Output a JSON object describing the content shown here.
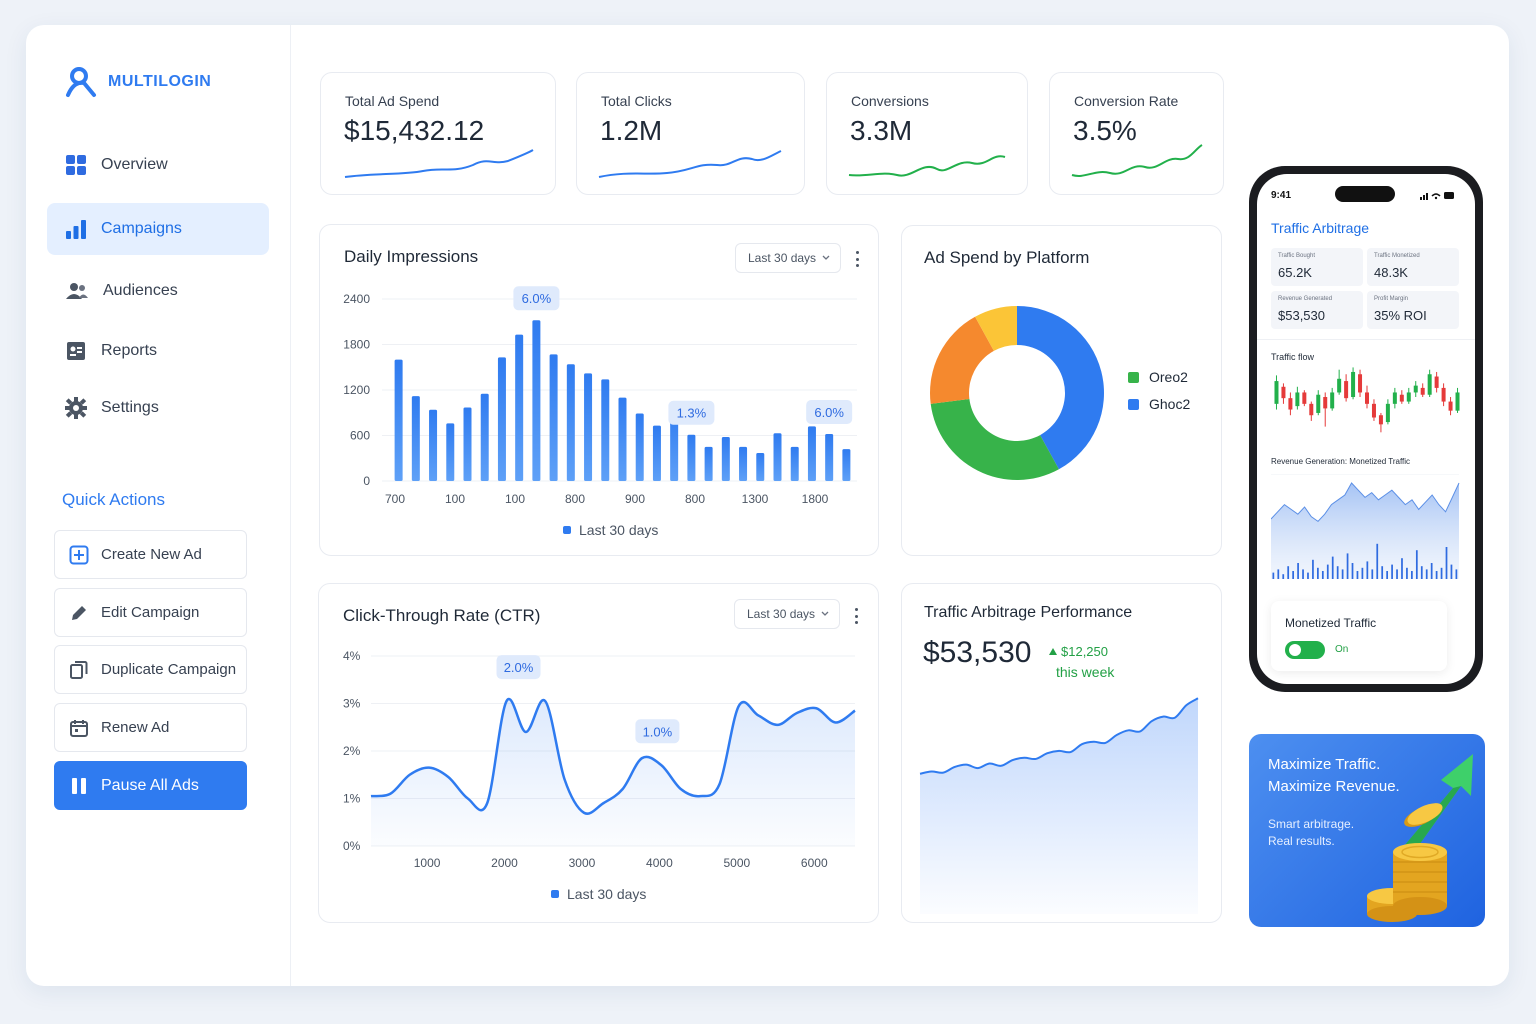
{
  "brand": {
    "name": "MULTILOGIN"
  },
  "nav": [
    {
      "label": "Overview",
      "icon": "grid-icon"
    },
    {
      "label": "Campaigns",
      "icon": "bar-chart-icon",
      "active": true
    },
    {
      "label": "Audiences",
      "icon": "users-icon"
    },
    {
      "label": "Reports",
      "icon": "report-icon"
    },
    {
      "label": "Settings",
      "icon": "gear-icon"
    }
  ],
  "quick_actions": {
    "title": "Quick Actions",
    "items": [
      {
        "label": "Create New Ad",
        "icon": "plus-square-icon"
      },
      {
        "label": "Edit Campaign",
        "icon": "pencil-icon"
      },
      {
        "label": "Duplicate Campaign",
        "icon": "copy-icon"
      },
      {
        "label": "Renew Ad",
        "icon": "calendar-icon"
      },
      {
        "label": "Pause All Ads",
        "icon": "pause-icon"
      }
    ]
  },
  "stats": [
    {
      "label": "Total Ad Spend",
      "value": "$15,432.12",
      "spark_color": "#2f7bf0"
    },
    {
      "label": "Total Clicks",
      "value": "1.2M",
      "spark_color": "#2f7bf0"
    },
    {
      "label": "Conversions",
      "value": "3.3M",
      "spark_color": "#22b04b"
    },
    {
      "label": "Conversion Rate",
      "value": "3.5%",
      "spark_color": "#22b04b"
    }
  ],
  "impressions": {
    "title": "Daily Impressions",
    "range": "Last 30 days",
    "legend": "Last 30 days",
    "chart_data": {
      "type": "bar",
      "y_ticks": [
        "2400",
        "1800",
        "1200",
        "600",
        "0"
      ],
      "x_ticks": [
        "700",
        "100",
        "100",
        "800",
        "900",
        "800",
        "1300",
        "1800"
      ],
      "ylim": [
        0,
        2400
      ],
      "values": [
        1600,
        1120,
        940,
        760,
        970,
        1150,
        1630,
        1930,
        2120,
        1670,
        1540,
        1420,
        1340,
        1100,
        890,
        730,
        940,
        610,
        450,
        580,
        450,
        370,
        630,
        450,
        720,
        620,
        420
      ],
      "annotations": [
        {
          "label": "6.0%",
          "index": 8
        },
        {
          "label": "1.3%",
          "index": 17
        },
        {
          "label": "6.0%",
          "index": 25
        }
      ]
    }
  },
  "ctr": {
    "title": "Click-Through Rate (CTR)",
    "range": "Last 30 days",
    "legend": "Last 30 days",
    "chart_data": {
      "type": "area",
      "y_ticks": [
        "4%",
        "3%",
        "2%",
        "1%",
        "0%"
      ],
      "x_ticks": [
        "1000",
        "2000",
        "3000",
        "4000",
        "5000",
        "6000"
      ],
      "ylim": [
        0,
        4
      ],
      "x": [
        250,
        500,
        750,
        1000,
        1250,
        1500,
        1750,
        2000,
        2250,
        2500,
        2750,
        3000,
        3250,
        3500,
        3750,
        4000,
        4250,
        4500,
        4750,
        5000,
        5250,
        5500,
        5750,
        6000,
        6250,
        6500
      ],
      "values": [
        1.05,
        1.1,
        1.5,
        1.65,
        1.45,
        1.0,
        0.9,
        3.05,
        2.4,
        3.05,
        1.4,
        0.7,
        0.9,
        1.2,
        1.85,
        1.7,
        1.2,
        1.05,
        1.3,
        2.95,
        2.75,
        2.55,
        2.8,
        2.9,
        2.6,
        2.85
      ],
      "annotations": [
        {
          "label": "2.0%",
          "index": 7
        },
        {
          "label": "1.0%",
          "index": 15
        }
      ]
    }
  },
  "platform": {
    "title": "Ad Spend by Platform",
    "chart_data": {
      "type": "pie",
      "slices": [
        {
          "name": "Ghoc2",
          "value": 42,
          "color": "#2f7bf0"
        },
        {
          "name": "Oreo2",
          "value": 31,
          "color": "#37b34a"
        },
        {
          "name": "",
          "value": 19,
          "color": "#f5892e"
        },
        {
          "name": "",
          "value": 8,
          "color": "#fbc537"
        }
      ],
      "legend": [
        {
          "name": "Oreo2",
          "color": "#37b34a"
        },
        {
          "name": "Ghoc2",
          "color": "#2f7bf0"
        }
      ]
    }
  },
  "arbitrage": {
    "title": "Traffic Arbitrage Performance",
    "value": "$53,530",
    "delta": "$12,250",
    "delta_sub": "this week",
    "chart_data": {
      "type": "area",
      "values": [
        1.6,
        1.7,
        1.65,
        1.9,
        2.0,
        1.85,
        2.05,
        1.95,
        2.2,
        2.3,
        2.25,
        2.5,
        2.6,
        2.55,
        2.9,
        3.0,
        2.95,
        3.3,
        3.5,
        3.45,
        3.9,
        4.1,
        4.05,
        4.6,
        4.9
      ]
    }
  },
  "phone": {
    "time": "9:41",
    "title": "Traffic Arbitrage",
    "tiles": [
      {
        "label": "Traffic Bought",
        "value": "65.2K"
      },
      {
        "label": "Traffic Monetized",
        "value": "48.3K"
      },
      {
        "label": "Revenue Generated",
        "value": "$53,530"
      },
      {
        "label": "Profit Margin",
        "value": "35% ROI"
      }
    ],
    "flow_title": "Traffic flow",
    "revenue_title": "Revenue Generation: Monetized Traffic",
    "toggle_title": "Monetized Traffic",
    "toggle_state": "On",
    "candles": [
      {
        "o": 30,
        "c": 50,
        "h": 55,
        "l": 25
      },
      {
        "o": 45,
        "c": 35,
        "h": 48,
        "l": 30
      },
      {
        "o": 35,
        "c": 25,
        "h": 40,
        "l": 20
      },
      {
        "o": 28,
        "c": 40,
        "h": 45,
        "l": 25
      },
      {
        "o": 40,
        "c": 30,
        "h": 42,
        "l": 28
      },
      {
        "o": 30,
        "c": 20,
        "h": 32,
        "l": 15
      },
      {
        "o": 22,
        "c": 38,
        "h": 42,
        "l": 20
      },
      {
        "o": 36,
        "c": 26,
        "h": 40,
        "l": 10
      },
      {
        "o": 26,
        "c": 40,
        "h": 44,
        "l": 24
      },
      {
        "o": 40,
        "c": 52,
        "h": 60,
        "l": 38
      },
      {
        "o": 50,
        "c": 35,
        "h": 56,
        "l": 32
      },
      {
        "o": 36,
        "c": 58,
        "h": 62,
        "l": 34
      },
      {
        "o": 56,
        "c": 40,
        "h": 60,
        "l": 36
      },
      {
        "o": 40,
        "c": 30,
        "h": 46,
        "l": 26
      },
      {
        "o": 30,
        "c": 18,
        "h": 34,
        "l": 15
      },
      {
        "o": 20,
        "c": 12,
        "h": 22,
        "l": 5
      },
      {
        "o": 14,
        "c": 30,
        "h": 34,
        "l": 12
      },
      {
        "o": 30,
        "c": 40,
        "h": 44,
        "l": 26
      },
      {
        "o": 38,
        "c": 32,
        "h": 42,
        "l": 30
      },
      {
        "o": 32,
        "c": 40,
        "h": 44,
        "l": 30
      },
      {
        "o": 40,
        "c": 46,
        "h": 50,
        "l": 36
      },
      {
        "o": 44,
        "c": 38,
        "h": 48,
        "l": 36
      },
      {
        "o": 38,
        "c": 56,
        "h": 60,
        "l": 36
      },
      {
        "o": 54,
        "c": 44,
        "h": 58,
        "l": 40
      },
      {
        "o": 44,
        "c": 32,
        "h": 48,
        "l": 28
      },
      {
        "o": 32,
        "c": 24,
        "h": 36,
        "l": 20
      },
      {
        "o": 24,
        "c": 40,
        "h": 44,
        "l": 22
      }
    ],
    "rev_line": [
      40,
      46,
      52,
      48,
      44,
      50,
      42,
      38,
      44,
      52,
      56,
      60,
      70,
      64,
      58,
      62,
      56,
      60,
      64,
      58,
      52,
      56,
      48,
      54,
      60,
      52,
      46,
      58,
      70
    ],
    "rev_bars": [
      4,
      6,
      3,
      8,
      5,
      10,
      6,
      4,
      12,
      7,
      5,
      9,
      14,
      8,
      6,
      16,
      10,
      5,
      7,
      11,
      6,
      22,
      8,
      5,
      9,
      6,
      13,
      7,
      5,
      18,
      8,
      6,
      10,
      5,
      7,
      20,
      9,
      6
    ]
  },
  "promo": {
    "line1": "Maximize Traffic.",
    "line2": "Maximize Revenue.",
    "sub1": "Smart arbitrage.",
    "sub2": "Real results."
  }
}
